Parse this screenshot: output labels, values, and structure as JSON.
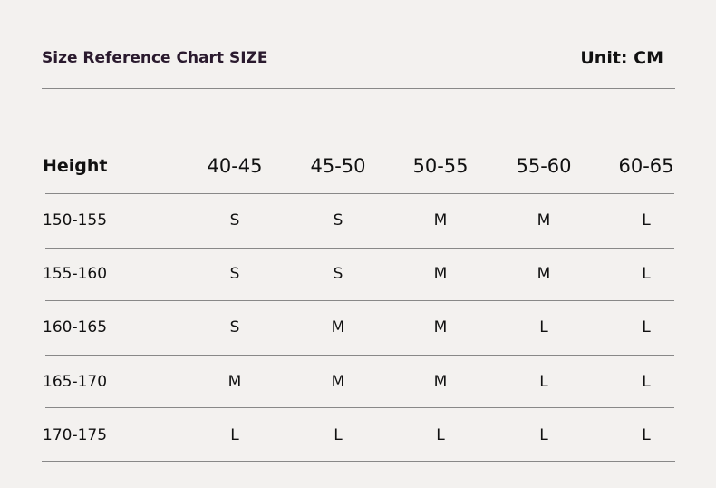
{
  "header": {
    "title": "Size Reference Chart SIZE",
    "unit": "Unit: CM"
  },
  "table": {
    "columns": [
      "Height",
      "40-45",
      "45-50",
      "50-55",
      "55-60",
      "60-65"
    ],
    "rows": [
      [
        "150-155",
        "S",
        "S",
        "M",
        "M",
        "L"
      ],
      [
        "155-160",
        "S",
        "S",
        "M",
        "M",
        "L"
      ],
      [
        "160-165",
        "S",
        "M",
        "M",
        "L",
        "L"
      ],
      [
        "165-170",
        "M",
        "M",
        "M",
        "L",
        "L"
      ],
      [
        "170-175",
        "L",
        "L",
        "L",
        "L",
        "L"
      ]
    ]
  }
}
